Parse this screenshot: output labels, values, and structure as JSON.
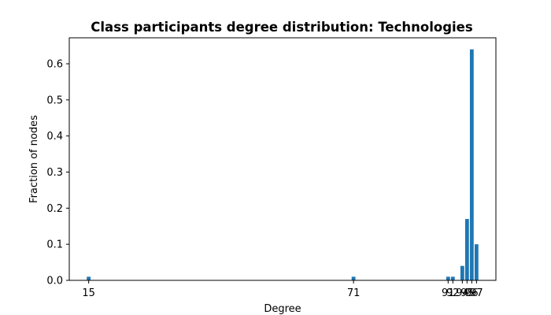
{
  "chart_data": {
    "type": "bar",
    "title": "Class participants degree distribution: Technologies",
    "xlabel": "Degree",
    "ylabel": "Fraction of nodes",
    "x": [
      15,
      71,
      91,
      92,
      94,
      95,
      96,
      97
    ],
    "values": [
      0.01,
      0.01,
      0.01,
      0.01,
      0.04,
      0.17,
      0.64,
      0.1
    ],
    "xticks": [
      15,
      71,
      91,
      92,
      94,
      95,
      96,
      97
    ],
    "xtick_labels": [
      "15",
      "71",
      "91",
      "92",
      "94",
      "95",
      "96",
      "97"
    ],
    "yticks": [
      0.0,
      0.1,
      0.2,
      0.3,
      0.4,
      0.5,
      0.6
    ],
    "ytick_labels": [
      "0.0",
      "0.1",
      "0.2",
      "0.3",
      "0.4",
      "0.5",
      "0.6"
    ],
    "xlim": [
      10.9,
      101.1
    ],
    "ylim": [
      0,
      0.672
    ],
    "bar_width": 0.8,
    "bar_color": "#1f77b4",
    "grid": false,
    "legend": false
  }
}
